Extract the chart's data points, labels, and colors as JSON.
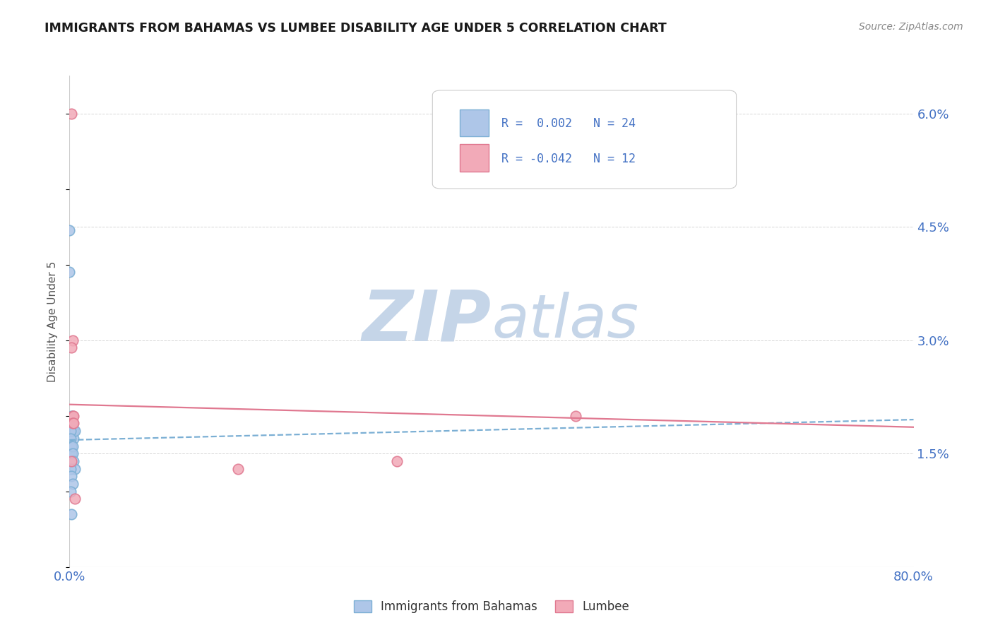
{
  "title": "IMMIGRANTS FROM BAHAMAS VS LUMBEE DISABILITY AGE UNDER 5 CORRELATION CHART",
  "source": "Source: ZipAtlas.com",
  "ylabel": "Disability Age Under 5",
  "xlim": [
    0.0,
    0.8
  ],
  "ylim": [
    0.0,
    0.065
  ],
  "xtick_labels": [
    "0.0%",
    "80.0%"
  ],
  "yticks_right": [
    0.0,
    0.015,
    0.03,
    0.045,
    0.06
  ],
  "ytick_labels_right": [
    "",
    "1.5%",
    "3.0%",
    "4.5%",
    "6.0%"
  ],
  "legend_r_blue": "0.002",
  "legend_n_blue": "24",
  "legend_r_pink": "-0.042",
  "legend_n_pink": "12",
  "blue_color": "#aec6e8",
  "pink_color": "#f2aab8",
  "blue_edge_color": "#7bafd4",
  "pink_edge_color": "#e07890",
  "blue_trend_color": "#7bafd4",
  "pink_trend_color": "#e07890",
  "blue_scatter_x": [
    0.0,
    0.0,
    0.002,
    0.002,
    0.003,
    0.003,
    0.003,
    0.004,
    0.004,
    0.005,
    0.001,
    0.001,
    0.002,
    0.002,
    0.002,
    0.003,
    0.003,
    0.004,
    0.005,
    0.001,
    0.002,
    0.003,
    0.001,
    0.002
  ],
  "blue_scatter_y": [
    0.0445,
    0.039,
    0.02,
    0.019,
    0.02,
    0.019,
    0.018,
    0.018,
    0.017,
    0.018,
    0.018,
    0.017,
    0.016,
    0.016,
    0.015,
    0.016,
    0.015,
    0.014,
    0.013,
    0.013,
    0.012,
    0.011,
    0.01,
    0.007
  ],
  "pink_scatter_x": [
    0.002,
    0.003,
    0.002,
    0.003,
    0.004,
    0.003,
    0.004,
    0.002,
    0.16,
    0.31,
    0.48,
    0.005
  ],
  "pink_scatter_y": [
    0.06,
    0.03,
    0.029,
    0.02,
    0.02,
    0.019,
    0.019,
    0.014,
    0.013,
    0.014,
    0.02,
    0.009
  ],
  "blue_trend_x": [
    0.0,
    0.8
  ],
  "blue_trend_y": [
    0.0168,
    0.0195
  ],
  "pink_trend_x": [
    0.0,
    0.8
  ],
  "pink_trend_y": [
    0.0215,
    0.0185
  ],
  "legend_label_blue": "Immigrants from Bahamas",
  "legend_label_pink": "Lumbee",
  "title_color": "#1a1a1a",
  "axis_label_color": "#555555",
  "tick_color": "#4472c4",
  "background_color": "#ffffff",
  "grid_color": "#cccccc",
  "watermark_zip_color": "#c5d5e8",
  "watermark_atlas_color": "#c5d5e8"
}
